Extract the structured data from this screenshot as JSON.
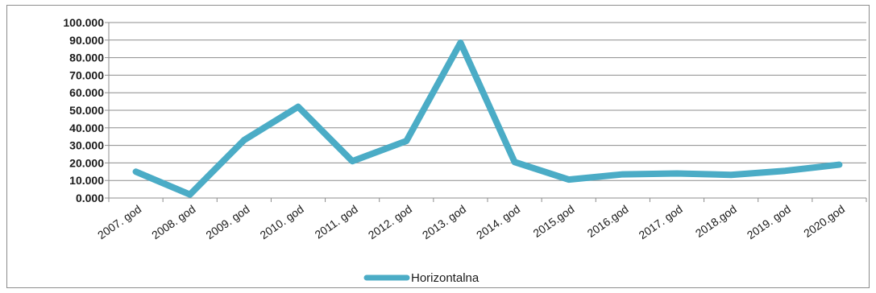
{
  "chart_data": {
    "type": "line",
    "categories": [
      "2007. god",
      "2008. god",
      "2009. god",
      "2010. god",
      "2011. god",
      "2012. god",
      "2013. god",
      "2014. god",
      "2015.god",
      "2016.god",
      "2017. god",
      "2018.god",
      "2019. god",
      "2020.god"
    ],
    "series": [
      {
        "name": "Horizontalna",
        "values": [
          15000,
          2000,
          33000,
          52000,
          21000,
          32500,
          88500,
          20500,
          10500,
          13500,
          14000,
          13200,
          15500,
          19000
        ],
        "color": "#4bacc6"
      }
    ],
    "y_ticks": [
      "0.000",
      "10.000",
      "20.000",
      "30.000",
      "40.000",
      "50.000",
      "60.000",
      "70.000",
      "80.000",
      "90.000",
      "100.000"
    ],
    "ylim": [
      0,
      100000
    ],
    "grid": true,
    "legend_position": "bottom"
  }
}
